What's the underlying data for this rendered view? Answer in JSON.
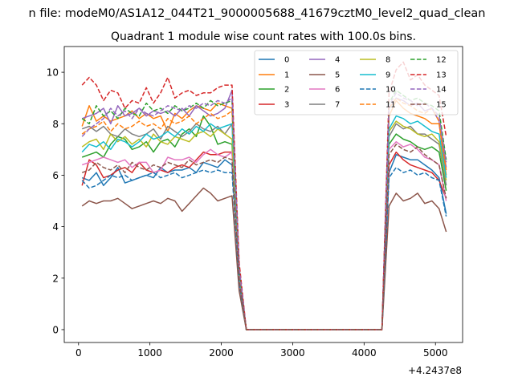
{
  "chart_data": {
    "type": "line",
    "suptitle": "n file: modeM0/AS1A12_044T21_9000005688_41679cztM0_level2_quad_clean",
    "title": "Quadrant 1 module wise count rates with 100.0s bins.",
    "xlabel": "",
    "ylabel": "",
    "x_offset_label": "+4.2437e8",
    "xlim": [
      -200,
      5380
    ],
    "ylim": [
      -0.5,
      11
    ],
    "x_ticks": [
      0,
      1000,
      2000,
      3000,
      4000,
      5000
    ],
    "y_ticks": [
      0,
      2,
      4,
      6,
      8,
      10
    ],
    "grid": false,
    "legend_placement": "top-right",
    "legend_columns": 4,
    "x": [
      50,
      150,
      250,
      350,
      450,
      550,
      650,
      750,
      850,
      950,
      1050,
      1150,
      1250,
      1350,
      1450,
      1550,
      1650,
      1750,
      1850,
      1950,
      2050,
      2150,
      2250,
      2350,
      4250,
      4350,
      4450,
      4550,
      4650,
      4750,
      4850,
      4950,
      5050,
      5150
    ],
    "series": [
      {
        "name": "0",
        "color": "#1f77b4",
        "values": [
          5.9,
          5.8,
          6.1,
          5.6,
          5.9,
          6.3,
          5.7,
          5.8,
          5.9,
          6.0,
          5.9,
          6.3,
          6.1,
          6.2,
          6.2,
          6.3,
          6.1,
          6.5,
          6.4,
          6.3,
          6.6,
          6.4,
          1.9,
          0,
          0,
          6.1,
          6.8,
          6.7,
          6.6,
          6.6,
          6.4,
          6.2,
          5.9,
          4.5
        ]
      },
      {
        "name": "1",
        "color": "#ff7f0e",
        "values": [
          7.9,
          8.7,
          8.1,
          8.3,
          8.1,
          8.2,
          8.3,
          8.5,
          8.2,
          8.4,
          8.2,
          8.3,
          7.7,
          8.4,
          8.2,
          8.5,
          8.7,
          8.6,
          8.5,
          8.8,
          8.7,
          8.6,
          2.2,
          0,
          0,
          8.3,
          8.9,
          8.6,
          8.4,
          8.3,
          8.2,
          8.0,
          8.0,
          6.0
        ]
      },
      {
        "name": "2",
        "color": "#2ca02c",
        "values": [
          6.7,
          6.8,
          6.9,
          6.7,
          7.2,
          7.5,
          7.4,
          7.0,
          7.1,
          7.3,
          6.9,
          7.3,
          7.4,
          7.1,
          7.6,
          7.8,
          7.5,
          8.3,
          7.9,
          7.2,
          7.3,
          7.2,
          2.1,
          0,
          0,
          7.2,
          7.6,
          7.4,
          7.3,
          7.1,
          7.0,
          7.1,
          6.9,
          5.4
        ]
      },
      {
        "name": "3",
        "color": "#d62728",
        "values": [
          5.6,
          6.6,
          6.4,
          5.9,
          6.0,
          6.2,
          6.3,
          6.1,
          6.5,
          6.2,
          6.1,
          6.2,
          6.1,
          6.3,
          6.4,
          6.3,
          6.6,
          6.9,
          6.8,
          6.8,
          6.9,
          6.9,
          2.0,
          0,
          0,
          6.4,
          6.9,
          6.6,
          6.4,
          6.3,
          6.2,
          6.1,
          5.8,
          5.1
        ]
      },
      {
        "name": "4",
        "color": "#9467bd",
        "values": [
          8.2,
          8.3,
          8.4,
          8.6,
          8.0,
          8.7,
          8.3,
          8.4,
          8.6,
          8.3,
          8.5,
          8.4,
          8.5,
          8.3,
          8.6,
          8.3,
          8.7,
          8.5,
          8.3,
          8.4,
          8.6,
          9.3,
          2.3,
          0,
          0,
          8.6,
          9.0,
          8.9,
          8.7,
          8.8,
          8.5,
          8.6,
          8.1,
          6.3
        ]
      },
      {
        "name": "5",
        "color": "#8c564b",
        "values": [
          4.8,
          5.0,
          4.9,
          5.0,
          5.0,
          5.1,
          4.9,
          4.7,
          4.8,
          4.9,
          5.0,
          4.9,
          5.1,
          5.0,
          4.6,
          4.9,
          5.2,
          5.5,
          5.3,
          5.0,
          5.1,
          5.2,
          1.5,
          0,
          0,
          4.8,
          5.3,
          5.0,
          5.1,
          5.3,
          4.9,
          5.0,
          4.7,
          3.8
        ]
      },
      {
        "name": "6",
        "color": "#e377c2",
        "values": [
          6.4,
          6.5,
          6.6,
          6.7,
          6.6,
          6.5,
          6.6,
          6.3,
          6.5,
          6.5,
          6.1,
          6.2,
          6.7,
          6.6,
          6.6,
          6.7,
          6.5,
          6.8,
          7.0,
          6.8,
          6.7,
          6.9,
          2.0,
          0,
          0,
          7.0,
          7.3,
          7.1,
          7.2,
          7.0,
          6.7,
          6.6,
          6.4,
          5.0
        ]
      },
      {
        "name": "7",
        "color": "#7f7f7f",
        "values": [
          7.8,
          7.9,
          7.7,
          7.9,
          7.6,
          7.5,
          7.8,
          7.6,
          7.5,
          7.6,
          7.8,
          7.4,
          7.9,
          7.7,
          7.5,
          7.7,
          8.0,
          7.8,
          7.7,
          7.9,
          7.6,
          8.0,
          2.2,
          0,
          0,
          7.5,
          8.0,
          7.8,
          7.9,
          7.6,
          7.6,
          7.4,
          7.2,
          5.6
        ]
      },
      {
        "name": "8",
        "color": "#bcbd22",
        "values": [
          7.1,
          7.3,
          7.4,
          7.0,
          7.6,
          7.3,
          7.5,
          7.2,
          7.4,
          7.1,
          7.6,
          7.3,
          7.2,
          7.5,
          7.4,
          7.3,
          7.6,
          7.7,
          7.5,
          7.8,
          7.6,
          7.4,
          2.1,
          0,
          0,
          7.7,
          8.1,
          7.9,
          7.8,
          7.6,
          7.5,
          7.6,
          7.3,
          5.8
        ]
      },
      {
        "name": "9",
        "color": "#17becf",
        "values": [
          6.9,
          7.2,
          7.1,
          7.3,
          7.0,
          7.4,
          7.3,
          7.1,
          7.3,
          7.6,
          7.4,
          7.5,
          7.7,
          7.5,
          7.8,
          7.6,
          7.9,
          7.7,
          8.0,
          7.8,
          7.9,
          8.0,
          2.2,
          0,
          0,
          7.8,
          8.3,
          8.2,
          8.0,
          8.1,
          7.9,
          7.7,
          7.6,
          5.9
        ]
      },
      {
        "name": "10",
        "color": "#1f77b4",
        "dashed": true,
        "values": [
          5.8,
          5.5,
          5.6,
          5.8,
          6.0,
          5.9,
          6.0,
          5.8,
          5.9,
          6.0,
          6.1,
          5.9,
          6.0,
          6.1,
          5.9,
          6.0,
          6.1,
          6.2,
          6.1,
          6.2,
          6.1,
          6.1,
          1.8,
          0,
          0,
          5.9,
          6.3,
          6.1,
          6.2,
          6.0,
          6.1,
          5.9,
          5.8,
          4.4
        ]
      },
      {
        "name": "11",
        "color": "#ff7f0e",
        "dashed": true,
        "values": [
          7.6,
          7.8,
          7.9,
          8.1,
          7.7,
          8.0,
          7.8,
          7.9,
          8.1,
          7.9,
          8.0,
          7.8,
          8.2,
          8.0,
          8.1,
          8.3,
          8.0,
          8.2,
          8.4,
          8.2,
          8.3,
          8.5,
          2.3,
          0,
          0,
          8.6,
          9.0,
          8.8,
          8.7,
          8.5,
          8.4,
          8.6,
          8.1,
          6.2
        ]
      },
      {
        "name": "12",
        "color": "#2ca02c",
        "dashed": true,
        "values": [
          8.2,
          8.0,
          8.7,
          8.3,
          8.5,
          8.2,
          8.6,
          8.4,
          8.3,
          8.8,
          8.5,
          8.6,
          8.4,
          8.7,
          8.5,
          8.6,
          8.8,
          8.6,
          8.9,
          8.7,
          8.8,
          8.9,
          2.4,
          0,
          0,
          8.8,
          9.3,
          9.1,
          8.9,
          9.0,
          8.8,
          8.7,
          8.5,
          6.6
        ]
      },
      {
        "name": "13",
        "color": "#d62728",
        "dashed": true,
        "values": [
          9.5,
          9.8,
          9.5,
          8.9,
          9.3,
          9.2,
          8.6,
          8.9,
          8.8,
          9.4,
          8.8,
          9.2,
          9.8,
          9.0,
          9.2,
          9.3,
          9.1,
          9.2,
          9.2,
          9.4,
          9.5,
          9.5,
          2.6,
          0,
          0,
          9.2,
          10.1,
          10.4,
          9.7,
          9.9,
          9.5,
          9.3,
          9.1,
          7.5
        ]
      },
      {
        "name": "14",
        "color": "#9467bd",
        "dashed": true,
        "values": [
          7.5,
          7.8,
          8.0,
          8.2,
          8.6,
          8.3,
          8.5,
          8.2,
          8.6,
          8.4,
          8.3,
          8.5,
          8.7,
          8.6,
          8.5,
          8.7,
          8.6,
          8.8,
          8.7,
          8.9,
          8.8,
          9.0,
          2.4,
          0,
          0,
          8.7,
          9.2,
          9.0,
          8.9,
          8.7,
          8.8,
          8.6,
          8.3,
          6.5
        ]
      },
      {
        "name": "15",
        "color": "#8c564b",
        "dashed": true,
        "values": [
          6.1,
          6.2,
          6.5,
          6.3,
          6.2,
          6.4,
          6.1,
          6.5,
          6.3,
          6.2,
          6.4,
          6.3,
          6.5,
          6.4,
          6.3,
          6.6,
          6.4,
          6.5,
          6.6,
          6.5,
          6.7,
          6.6,
          1.9,
          0,
          0,
          6.8,
          7.2,
          7.0,
          6.9,
          7.1,
          6.8,
          6.6,
          6.4,
          5.1
        ]
      }
    ]
  }
}
